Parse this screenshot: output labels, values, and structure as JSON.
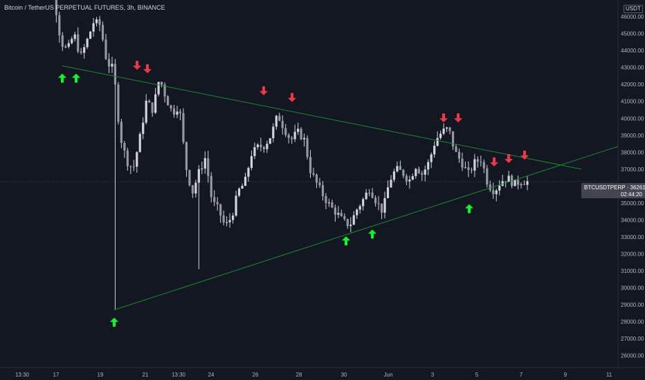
{
  "header": {
    "title": "Bitcoin / TetherUS PERPETUAL FUTURES, 3h, BINANCE",
    "currency": "USDT"
  },
  "price_badge": {
    "symbol": "BTCUSDTPERP",
    "price": "36261.21",
    "countdown": "02:44:20"
  },
  "colors": {
    "background": "#131722",
    "candle": "#d1d4dc",
    "trendline": "#1b8a2e",
    "up_arrow": "#00ff2a",
    "down_arrow": "#f23645",
    "axis_text": "#b2b5be"
  },
  "chart_data": {
    "type": "candlestick",
    "y_axis": {
      "range": [
        25500,
        46900
      ],
      "ticks": [
        "26000.00",
        "27000.00",
        "28000.00",
        "29000.00",
        "30000.00",
        "31000.00",
        "32000.00",
        "33000.00",
        "34000.00",
        "35000.00",
        "36000.00",
        "37000.00",
        "38000.00",
        "39000.00",
        "40000.00",
        "41000.00",
        "42000.00",
        "43000.00",
        "44000.00",
        "45000.00",
        "46000.00"
      ]
    },
    "x_axis": {
      "ticks": [
        "13:30",
        "17",
        "19",
        "21",
        "13:30",
        "24",
        "26",
        "28",
        "30",
        "Jun",
        "3",
        "5",
        "7",
        "9",
        "11"
      ]
    },
    "price_path": [
      [
        0,
        47200
      ],
      [
        1,
        48000
      ],
      [
        2,
        47500
      ],
      [
        3,
        47100
      ],
      [
        4,
        44500
      ],
      [
        5,
        44000
      ],
      [
        6,
        45000
      ],
      [
        7,
        43600
      ],
      [
        8,
        44600
      ],
      [
        9,
        45700
      ],
      [
        10,
        45500
      ],
      [
        11,
        43300
      ],
      [
        12,
        42900
      ],
      [
        13,
        39000
      ],
      [
        14,
        37500
      ],
      [
        15,
        37000
      ],
      [
        16,
        38800
      ],
      [
        17,
        41000
      ],
      [
        18,
        40500
      ],
      [
        19,
        42400
      ],
      [
        20,
        41200
      ],
      [
        21,
        40300
      ],
      [
        22,
        40800
      ],
      [
        23,
        37200
      ],
      [
        24,
        35600
      ],
      [
        25,
        36800
      ],
      [
        26,
        37700
      ],
      [
        27,
        35100
      ],
      [
        28,
        34600
      ],
      [
        29,
        33600
      ],
      [
        30,
        34200
      ],
      [
        31,
        35700
      ],
      [
        32,
        36200
      ],
      [
        33,
        37900
      ],
      [
        34,
        38300
      ],
      [
        35,
        38400
      ],
      [
        36,
        39000
      ],
      [
        37,
        40200
      ],
      [
        38,
        39400
      ],
      [
        39,
        38700
      ],
      [
        40,
        39200
      ],
      [
        41,
        38800
      ],
      [
        42,
        36900
      ],
      [
        43,
        36100
      ],
      [
        44,
        35400
      ],
      [
        45,
        34800
      ],
      [
        46,
        34400
      ],
      [
        47,
        33900
      ],
      [
        48,
        33700
      ],
      [
        49,
        34600
      ],
      [
        50,
        35200
      ],
      [
        51,
        35900
      ],
      [
        52,
        35100
      ],
      [
        53,
        34500
      ],
      [
        54,
        36300
      ],
      [
        55,
        37000
      ],
      [
        56,
        36800
      ],
      [
        57,
        36300
      ],
      [
        58,
        37200
      ],
      [
        59,
        36700
      ],
      [
        60,
        37400
      ],
      [
        61,
        38700
      ],
      [
        62,
        39200
      ],
      [
        63,
        39400
      ],
      [
        64,
        38000
      ],
      [
        65,
        37400
      ],
      [
        66,
        36700
      ],
      [
        67,
        37400
      ],
      [
        68,
        37600
      ],
      [
        69,
        36100
      ],
      [
        70,
        35700
      ],
      [
        71,
        36300
      ],
      [
        72,
        36500
      ],
      [
        73,
        36100
      ],
      [
        74,
        36300
      ],
      [
        75,
        36261
      ]
    ],
    "candle_count": 160,
    "markers": {
      "up_arrows_at_price": [
        42800,
        42800,
        28400,
        33200,
        33600,
        35100
      ],
      "down_arrows_at_price": [
        42700,
        42500,
        41200,
        40800,
        39600,
        39600,
        37000,
        37200,
        37400
      ]
    },
    "trendlines": [
      {
        "name": "upper",
        "from_price": 43100,
        "to_price": 37000
      },
      {
        "name": "lower",
        "from_price": 28700,
        "to_price": 37100
      }
    ],
    "last_price": 36261.21
  }
}
